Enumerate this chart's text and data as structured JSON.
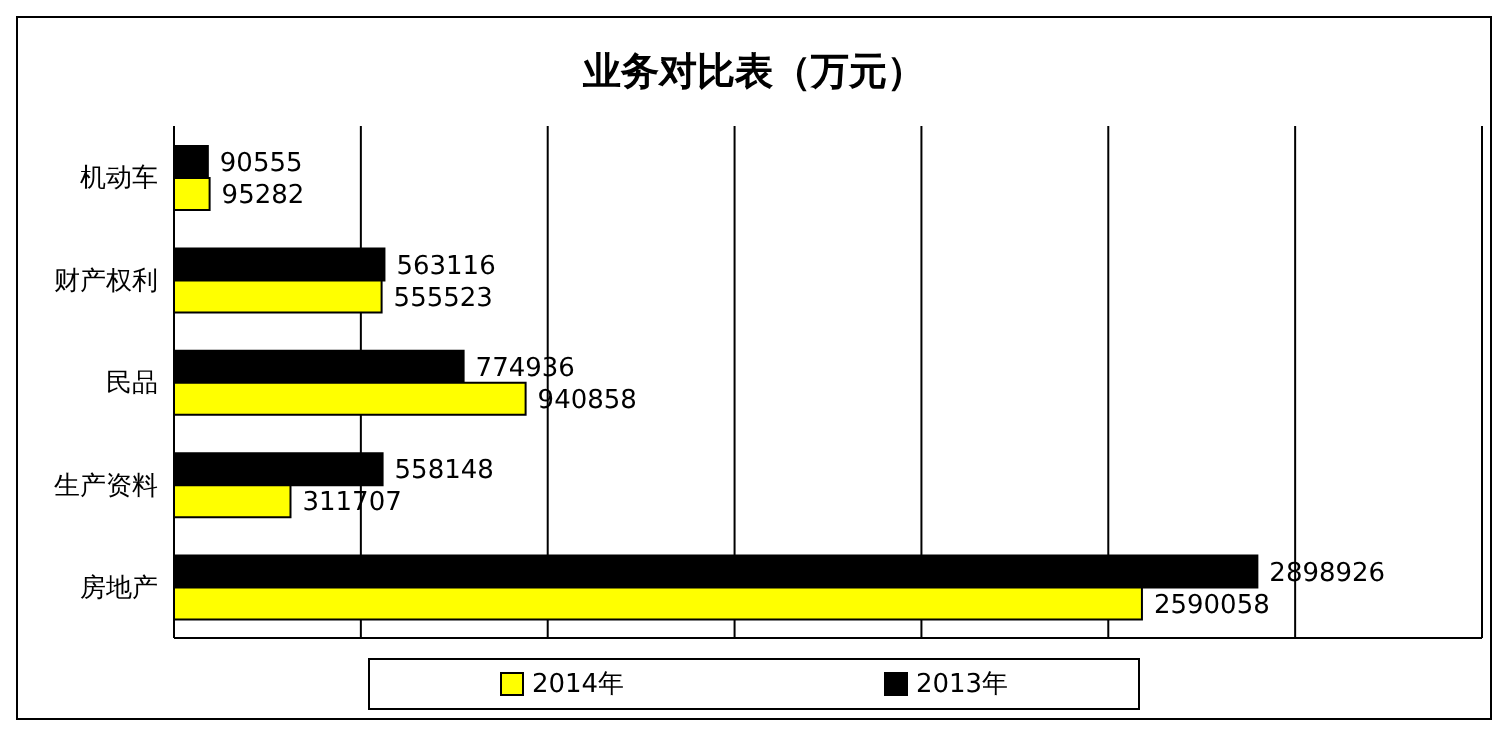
{
  "chart_data": {
    "type": "bar",
    "orientation": "horizontal",
    "title": "业务对比表（万元）",
    "categories": [
      "机动车",
      "财产权利",
      "民品",
      "生产资料",
      "房地产"
    ],
    "series": [
      {
        "name": "2013年",
        "color": "#000000",
        "values": [
          90555,
          563116,
          774936,
          558148,
          2898926
        ]
      },
      {
        "name": "2014年",
        "color": "#ffff00",
        "values": [
          95282,
          555523,
          940858,
          311707,
          2590058
        ]
      }
    ],
    "xlim": [
      0,
      3500000
    ],
    "xticks": [
      {
        "value": 0,
        "label": null
      },
      {
        "value": 500000,
        "label": null
      },
      {
        "value": 1000000,
        "label": null
      },
      {
        "value": 1500000,
        "label": null
      },
      {
        "value": 2000000,
        "label": null
      },
      {
        "value": 2500000,
        "label": null
      },
      {
        "value": 3000000,
        "label": null
      },
      {
        "value": 3500000,
        "label": null
      }
    ],
    "tick_labels": "y",
    "grid": "x",
    "data_labels": true,
    "legend": "bottom"
  }
}
